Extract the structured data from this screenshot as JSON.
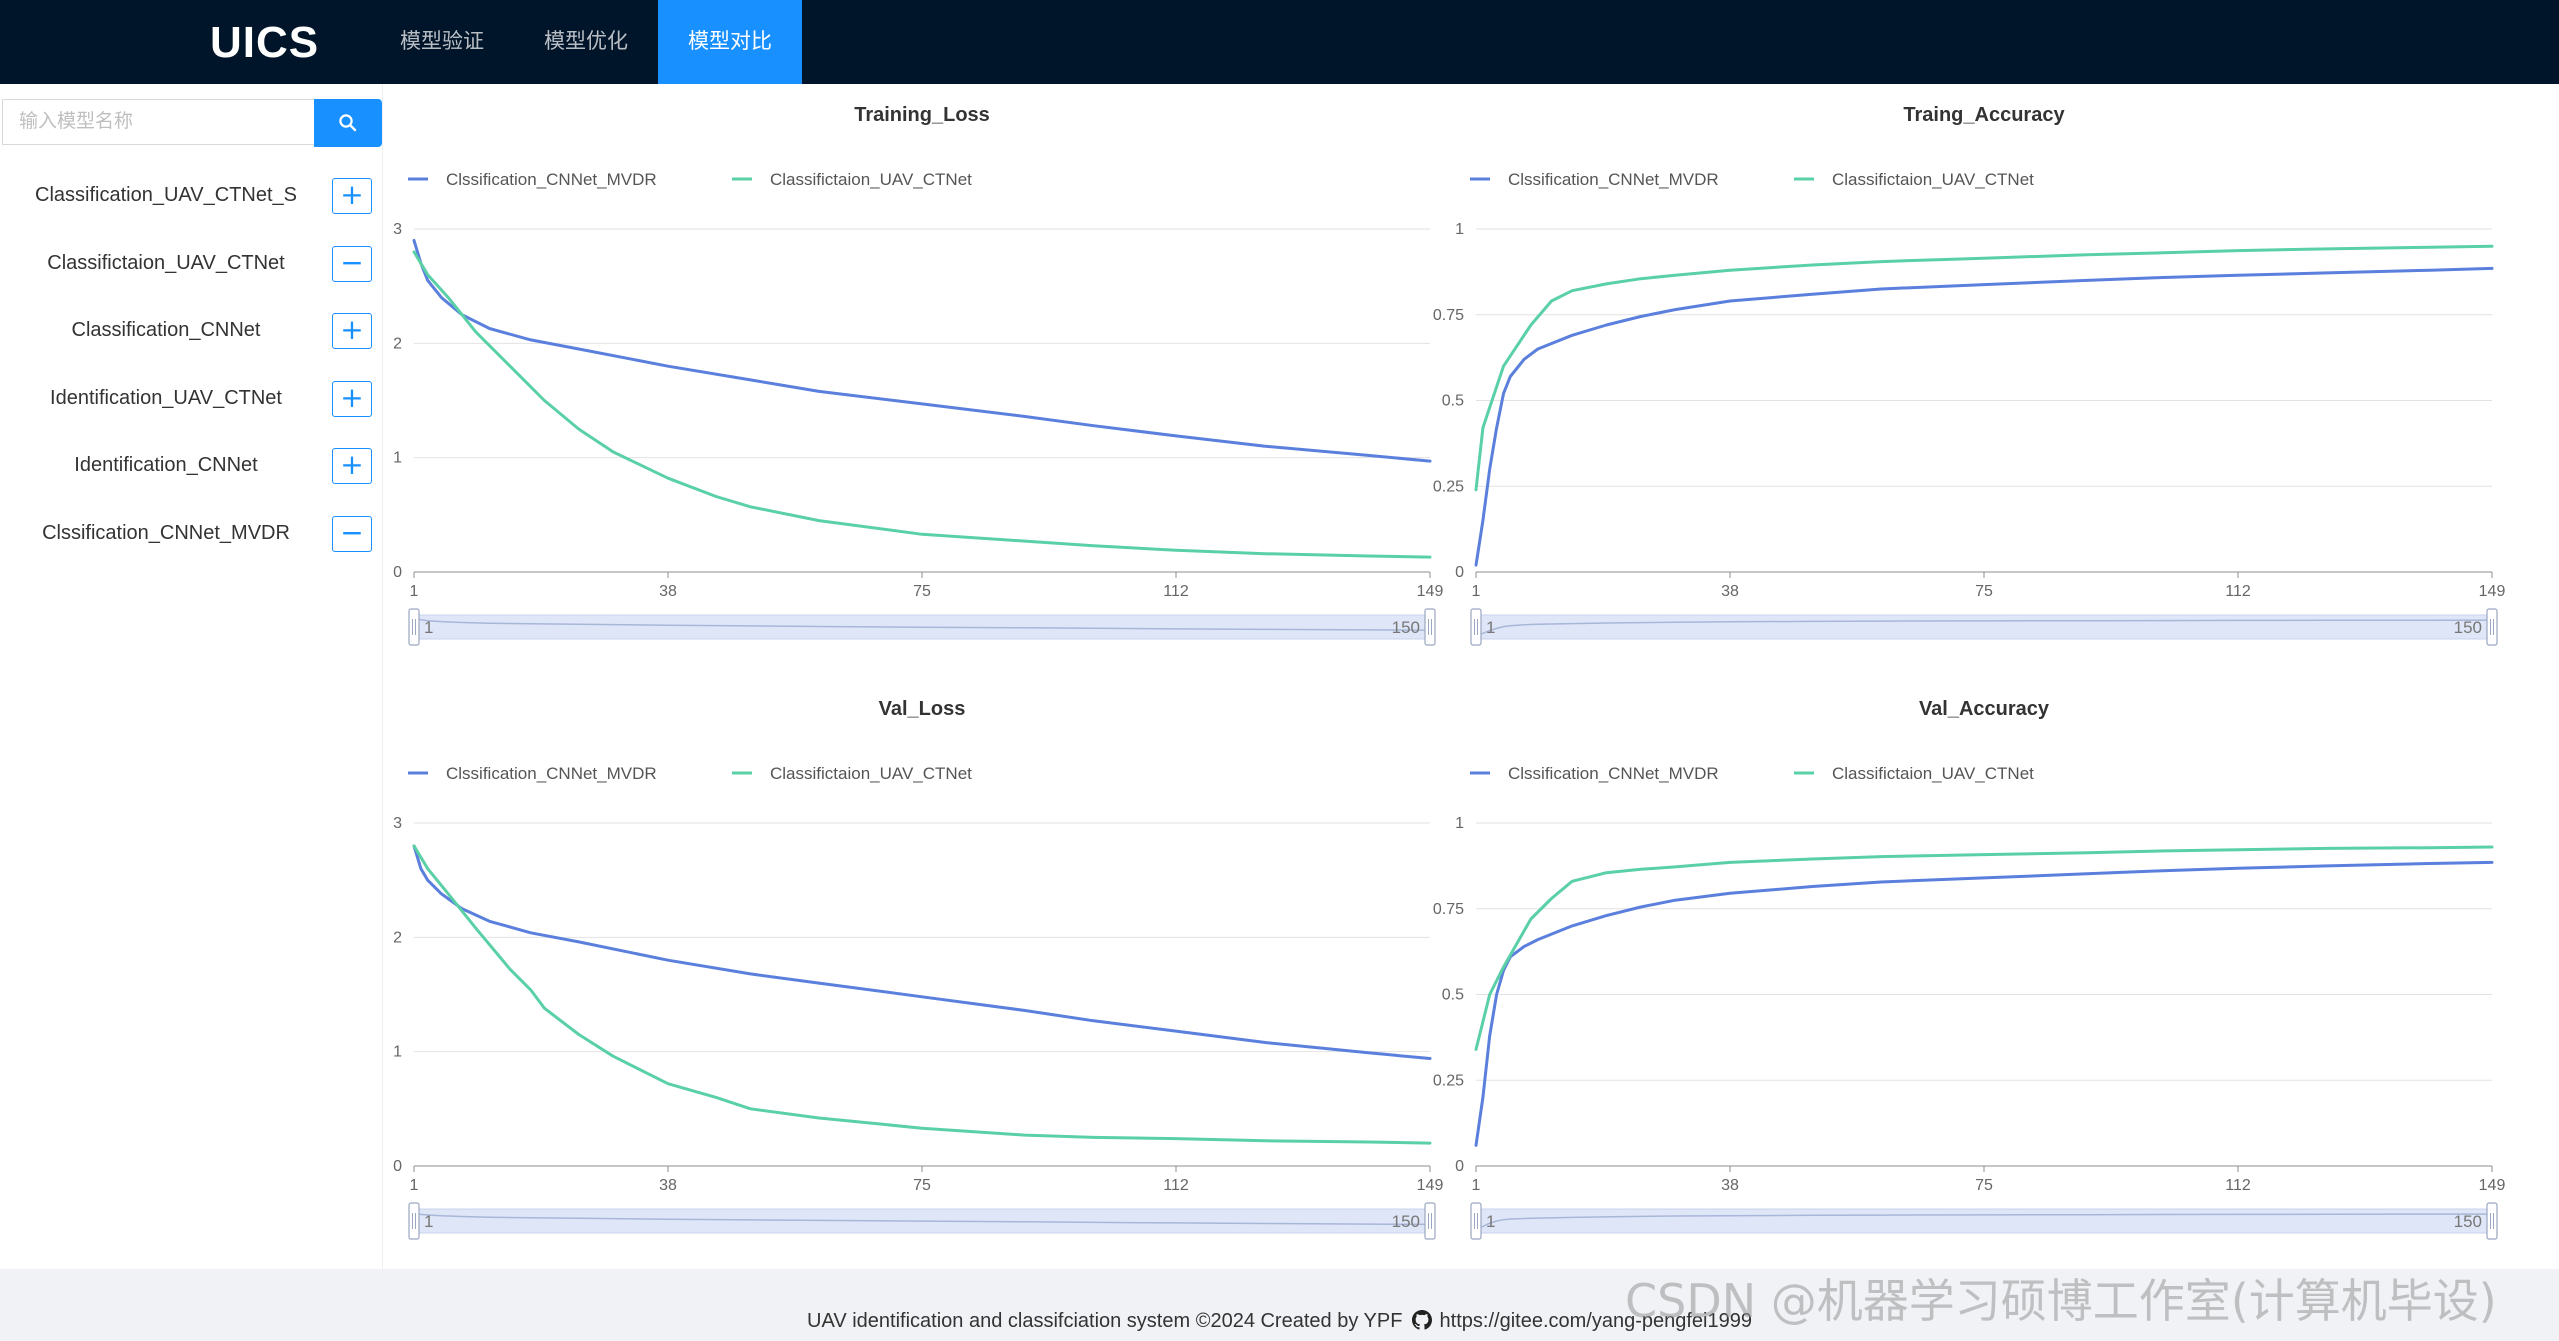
{
  "app": {
    "logo": "UICS"
  },
  "nav": {
    "items": [
      {
        "label": "模型验证",
        "active": false
      },
      {
        "label": "模型优化",
        "active": false
      },
      {
        "label": "模型对比",
        "active": true
      }
    ]
  },
  "sidebar": {
    "search_placeholder": "输入模型名称",
    "search_icon": "search-icon",
    "models": [
      {
        "name": "Classification_UAV_CTNet_S",
        "action": "+"
      },
      {
        "name": "Classifictaion_UAV_CTNet",
        "action": "−"
      },
      {
        "name": "Classification_CNNet",
        "action": "+"
      },
      {
        "name": "Identification_UAV_CTNet",
        "action": "+"
      },
      {
        "name": "Identification_CNNet",
        "action": "+"
      },
      {
        "name": "Clssification_CNNet_MVDR",
        "action": "−"
      }
    ]
  },
  "colors": {
    "series_blue": "#5b7fdc",
    "series_green": "#5ad0a6",
    "accent": "#1890ff",
    "header_bg": "#001529"
  },
  "chart_data": [
    {
      "type": "line",
      "title": "Training_Loss",
      "x_ticks": [
        "1",
        "38",
        "75",
        "112",
        "149"
      ],
      "y_ticks": [
        "0",
        "1",
        "2",
        "3"
      ],
      "ylim": [
        0,
        3
      ],
      "xlim": [
        1,
        149
      ],
      "grid": true,
      "legend": "top-left",
      "slider": {
        "start": "1",
        "end": "150"
      },
      "series": [
        {
          "name": "Clssification_CNNet_MVDR",
          "color": "#5b7fdc",
          "x": [
            1,
            2,
            3,
            5,
            8,
            12,
            18,
            25,
            38,
            50,
            60,
            75,
            90,
            100,
            112,
            125,
            140,
            149
          ],
          "values": [
            2.9,
            2.7,
            2.55,
            2.4,
            2.25,
            2.13,
            2.03,
            1.95,
            1.8,
            1.68,
            1.58,
            1.47,
            1.36,
            1.28,
            1.19,
            1.1,
            1.02,
            0.97
          ]
        },
        {
          "name": "Classifictaion_UAV_CTNet",
          "color": "#5ad0a6",
          "x": [
            1,
            3,
            6,
            10,
            15,
            20,
            25,
            30,
            38,
            45,
            50,
            60,
            75,
            90,
            100,
            112,
            125,
            140,
            149
          ],
          "values": [
            2.8,
            2.6,
            2.4,
            2.1,
            1.8,
            1.5,
            1.25,
            1.05,
            0.82,
            0.66,
            0.57,
            0.45,
            0.33,
            0.27,
            0.23,
            0.19,
            0.16,
            0.14,
            0.13
          ]
        }
      ]
    },
    {
      "type": "line",
      "title": "Traing_Accuracy",
      "x_ticks": [
        "1",
        "38",
        "75",
        "112",
        "149"
      ],
      "y_ticks": [
        "0",
        "0.25",
        "0.5",
        "0.75",
        "1"
      ],
      "ylim": [
        0,
        1
      ],
      "xlim": [
        1,
        149
      ],
      "grid": true,
      "legend": "top-left",
      "slider": {
        "start": "1",
        "end": "150"
      },
      "series": [
        {
          "name": "Clssification_CNNet_MVDR",
          "color": "#5b7fdc",
          "x": [
            1,
            2,
            3,
            4,
            5,
            6,
            8,
            10,
            15,
            20,
            25,
            30,
            38,
            50,
            60,
            75,
            90,
            100,
            112,
            125,
            140,
            149
          ],
          "values": [
            0.02,
            0.15,
            0.3,
            0.42,
            0.52,
            0.57,
            0.62,
            0.65,
            0.69,
            0.72,
            0.745,
            0.765,
            0.79,
            0.81,
            0.825,
            0.838,
            0.85,
            0.858,
            0.865,
            0.872,
            0.88,
            0.885
          ]
        },
        {
          "name": "Classifictaion_UAV_CTNet",
          "color": "#5ad0a6",
          "x": [
            1,
            2,
            3,
            5,
            7,
            9,
            12,
            15,
            20,
            25,
            30,
            38,
            50,
            60,
            75,
            90,
            100,
            112,
            125,
            140,
            149
          ],
          "values": [
            0.24,
            0.42,
            0.48,
            0.6,
            0.66,
            0.72,
            0.79,
            0.82,
            0.84,
            0.855,
            0.865,
            0.88,
            0.895,
            0.905,
            0.915,
            0.925,
            0.93,
            0.937,
            0.942,
            0.947,
            0.95
          ]
        }
      ]
    },
    {
      "type": "line",
      "title": "Val_Loss",
      "x_ticks": [
        "1",
        "38",
        "75",
        "112",
        "149"
      ],
      "y_ticks": [
        "0",
        "1",
        "2",
        "3"
      ],
      "ylim": [
        0,
        3
      ],
      "xlim": [
        1,
        149
      ],
      "grid": true,
      "legend": "top-left",
      "slider": {
        "start": "1",
        "end": "150"
      },
      "series": [
        {
          "name": "Clssification_CNNet_MVDR",
          "color": "#5b7fdc",
          "x": [
            1,
            2,
            3,
            5,
            8,
            12,
            18,
            25,
            38,
            50,
            60,
            75,
            90,
            100,
            112,
            125,
            140,
            149
          ],
          "values": [
            2.8,
            2.6,
            2.5,
            2.38,
            2.25,
            2.14,
            2.04,
            1.96,
            1.8,
            1.68,
            1.6,
            1.48,
            1.36,
            1.27,
            1.18,
            1.08,
            0.99,
            0.94
          ]
        },
        {
          "name": "Classifictaion_UAV_CTNet",
          "color": "#5ad0a6",
          "x": [
            1,
            3,
            6,
            10,
            15,
            18,
            20,
            25,
            30,
            38,
            45,
            50,
            60,
            70,
            75,
            90,
            100,
            112,
            125,
            140,
            149
          ],
          "values": [
            2.8,
            2.6,
            2.38,
            2.08,
            1.72,
            1.54,
            1.38,
            1.15,
            0.96,
            0.72,
            0.6,
            0.5,
            0.42,
            0.36,
            0.33,
            0.27,
            0.25,
            0.24,
            0.22,
            0.21,
            0.2
          ]
        }
      ]
    },
    {
      "type": "line",
      "title": "Val_Accuracy",
      "x_ticks": [
        "1",
        "38",
        "75",
        "112",
        "149"
      ],
      "y_ticks": [
        "0",
        "0.25",
        "0.5",
        "0.75",
        "1"
      ],
      "ylim": [
        0,
        1
      ],
      "xlim": [
        1,
        149
      ],
      "grid": true,
      "legend": "top-left",
      "slider": {
        "start": "1",
        "end": "150"
      },
      "series": [
        {
          "name": "Clssification_CNNet_MVDR",
          "color": "#5b7fdc",
          "x": [
            1,
            2,
            3,
            4,
            5,
            6,
            8,
            10,
            15,
            20,
            25,
            30,
            38,
            50,
            60,
            75,
            90,
            100,
            112,
            125,
            140,
            149
          ],
          "values": [
            0.06,
            0.2,
            0.38,
            0.5,
            0.57,
            0.61,
            0.64,
            0.66,
            0.7,
            0.73,
            0.755,
            0.775,
            0.795,
            0.815,
            0.828,
            0.84,
            0.852,
            0.86,
            0.868,
            0.875,
            0.882,
            0.885
          ]
        },
        {
          "name": "Classifictaion_UAV_CTNet",
          "color": "#5ad0a6",
          "x": [
            1,
            2,
            3,
            5,
            7,
            9,
            12,
            15,
            20,
            25,
            30,
            38,
            50,
            60,
            75,
            90,
            100,
            112,
            125,
            140,
            149
          ],
          "values": [
            0.34,
            0.42,
            0.5,
            0.58,
            0.65,
            0.72,
            0.78,
            0.83,
            0.855,
            0.865,
            0.872,
            0.885,
            0.895,
            0.902,
            0.908,
            0.913,
            0.918,
            0.922,
            0.926,
            0.928,
            0.93
          ]
        }
      ]
    }
  ],
  "footer": {
    "text": "UAV identification and classifciation system ©2024 Created by YPF",
    "github_icon": "github-icon",
    "link": "https://gitee.com/yang-pengfei1999"
  },
  "watermark": "CSDN @机器学习硕博工作室(计算机毕设)"
}
